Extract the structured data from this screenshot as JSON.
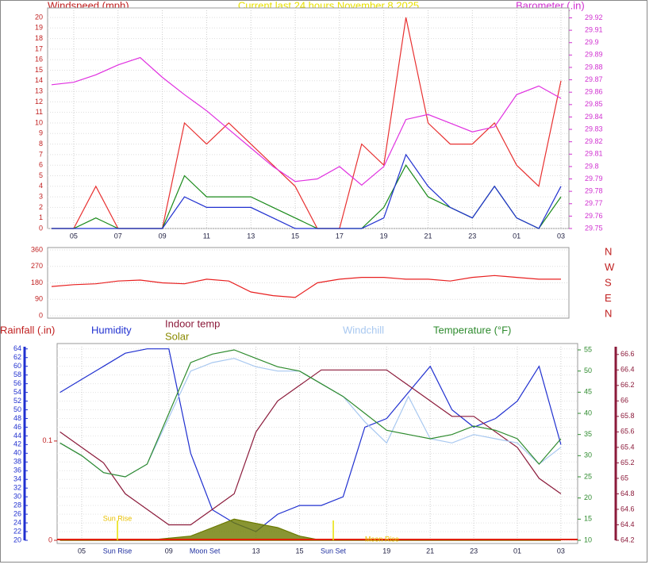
{
  "chart_data": [
    {
      "type": "line",
      "title": "Current last 24 hours November 8 2025",
      "y_label": "Windspeed (mph)",
      "y2_label": "Barometer (.in)",
      "x": [
        4,
        5,
        6,
        7,
        8,
        9,
        10,
        11,
        12,
        13,
        14,
        15,
        16,
        17,
        18,
        19,
        20,
        21,
        22,
        23,
        24,
        25,
        26,
        27
      ],
      "xlim": [
        3.82,
        27.36
      ],
      "xticks": [
        {
          "value": 5,
          "label": "05"
        },
        {
          "value": 7,
          "label": "07"
        },
        {
          "value": 9,
          "label": "09"
        },
        11,
        13,
        15,
        17,
        19,
        21,
        23,
        {
          "value": 25,
          "label": "01"
        },
        {
          "value": 27,
          "label": "03"
        }
      ],
      "ylim": [
        0,
        20.9
      ],
      "yticks": [
        0,
        1,
        2,
        3,
        4,
        5,
        6,
        7,
        8,
        9,
        10,
        11,
        12,
        13,
        14,
        15,
        16,
        17,
        18,
        19,
        20
      ],
      "y2lim": [
        29.75,
        29.928
      ],
      "y2ticks": [
        29.75,
        29.76,
        29.77,
        29.78,
        29.79,
        29.8,
        29.81,
        29.82,
        29.83,
        29.84,
        29.85,
        29.86,
        29.87,
        29.88,
        29.89,
        29.9,
        29.91,
        29.92
      ],
      "grid": true,
      "series": [
        {
          "color": "#e83030",
          "values": [
            0,
            0,
            4,
            0,
            0,
            0,
            10,
            8,
            10,
            8,
            6,
            4,
            0,
            0,
            8,
            6,
            20,
            10,
            8,
            8,
            10,
            6,
            4,
            14
          ]
        },
        {
          "color": "#1a8a1a",
          "values": [
            0,
            0,
            1,
            0,
            0,
            0,
            5,
            3,
            3,
            3,
            2,
            1,
            0,
            0,
            0,
            2,
            6,
            3,
            2,
            1,
            4,
            1,
            0,
            3
          ]
        },
        {
          "color": "#2030d0",
          "values": [
            0,
            0,
            0,
            0,
            0,
            0,
            3,
            2,
            2,
            2,
            1,
            0,
            0,
            0,
            0,
            1,
            7,
            4,
            2,
            1,
            4,
            1,
            0,
            4
          ]
        },
        {
          "color": "#e030e0",
          "axis": "y2",
          "values": [
            29.866,
            29.868,
            29.874,
            29.882,
            29.888,
            29.872,
            29.858,
            29.845,
            29.83,
            29.815,
            29.8,
            29.788,
            29.79,
            29.8,
            29.785,
            29.8,
            29.838,
            29.842,
            29.835,
            29.828,
            29.832,
            29.858,
            29.865,
            29.855
          ]
        }
      ]
    },
    {
      "type": "line",
      "x": [
        4,
        5,
        6,
        7,
        8,
        9,
        10,
        11,
        12,
        13,
        14,
        15,
        16,
        17,
        18,
        19,
        20,
        21,
        22,
        23,
        24,
        25,
        26,
        27
      ],
      "xlim": [
        3.82,
        27.36
      ],
      "ylim": [
        0,
        360
      ],
      "yticks": [
        0,
        90,
        180,
        270,
        360
      ],
      "grid": true,
      "direction_labels": [
        "N",
        "W",
        "S",
        "E",
        "N"
      ],
      "series": [
        {
          "color": "#e82020",
          "values": [
            160,
            170,
            175,
            190,
            195,
            180,
            175,
            200,
            190,
            130,
            110,
            100,
            180,
            200,
            210,
            210,
            200,
            200,
            190,
            210,
            220,
            210,
            200,
            200
          ]
        }
      ]
    },
    {
      "type": "line",
      "x": [
        4,
        5,
        6,
        7,
        8,
        9,
        10,
        11,
        12,
        13,
        14,
        15,
        16,
        17,
        18,
        19,
        20,
        21,
        22,
        23,
        24,
        25,
        26,
        27
      ],
      "xlim": [
        3.87,
        27.77
      ],
      "xticks": [
        {
          "value": 5,
          "label": "05"
        },
        {
          "value": 9,
          "label": "09"
        },
        13,
        15,
        19,
        21,
        23,
        {
          "value": 25,
          "label": "01"
        },
        {
          "value": 27,
          "label": "03"
        }
      ],
      "grid": true,
      "axes": {
        "rain": {
          "lim": [
            0,
            0.195
          ],
          "ticks": [
            0,
            0.1
          ]
        },
        "humidity": {
          "lim": [
            20,
            64.5
          ],
          "ticks": [
            20,
            22,
            24,
            26,
            28,
            30,
            32,
            34,
            36,
            38,
            40,
            42,
            44,
            46,
            48,
            50,
            52,
            54,
            56,
            58,
            60,
            62,
            64
          ]
        },
        "temp": {
          "lim": [
            10,
            55.75
          ],
          "ticks": [
            10,
            15,
            20,
            25,
            30,
            35,
            40,
            45,
            50,
            55
          ]
        },
        "indoor": {
          "lim": [
            64.2,
            66.7
          ],
          "ticks": [
            64.2,
            64.4,
            64.6,
            64.8,
            65,
            65.2,
            65.4,
            65.6,
            65.8,
            66,
            66.2,
            66.4,
            66.6
          ]
        }
      },
      "events": [
        {
          "label": "Sun Rise",
          "x": 6.64
        },
        {
          "label": "Moon Set",
          "x": 10.65
        },
        {
          "label": "Sun Set",
          "x": 16.55
        },
        {
          "label": "Moon Rise",
          "x": 18.0
        }
      ],
      "series": [
        {
          "name": "Rainfall (.in)",
          "color": "#d02020",
          "axis": "rain",
          "values": [
            0,
            0,
            0,
            0,
            0,
            0,
            0,
            0,
            0,
            0,
            0,
            0,
            0,
            0,
            0,
            0,
            0,
            0,
            0,
            0,
            0,
            0,
            0,
            0
          ]
        },
        {
          "name": "Humidity",
          "color": "#2030d0",
          "axis": "humidity",
          "values": [
            54,
            57,
            60,
            63,
            64,
            64,
            40,
            27,
            24,
            22,
            26,
            28,
            28,
            30,
            46,
            48,
            54,
            60,
            50,
            46,
            48,
            52,
            60,
            42
          ]
        },
        {
          "name": "Indoor temp",
          "color": "#8b1a3a",
          "axis": "indoor",
          "values": [
            65.6,
            65.4,
            65.2,
            64.8,
            64.6,
            64.4,
            64.4,
            64.6,
            64.8,
            65.6,
            66,
            66.2,
            66.4,
            66.4,
            66.4,
            66.4,
            66.2,
            66,
            65.8,
            65.8,
            65.6,
            65.4,
            65,
            64.8
          ]
        },
        {
          "name": "Solar",
          "color": "#6b7a00",
          "axis": "temp",
          "area": true,
          "values": [
            10,
            10,
            10,
            10,
            10,
            10.5,
            11,
            13,
            15,
            14,
            13,
            11,
            10,
            10,
            10,
            10,
            10,
            10,
            10,
            10,
            10,
            10,
            10,
            10
          ]
        },
        {
          "name": "Windchill",
          "color": "#a8c8f0",
          "axis": "temp",
          "values": [
            33,
            30,
            26,
            25,
            28,
            39,
            50,
            52,
            53,
            51,
            50,
            50,
            47,
            44,
            38,
            33,
            44,
            34,
            33,
            35,
            34,
            33,
            28,
            32
          ]
        },
        {
          "name": "Temperature (°F)",
          "color": "#2e8b2e",
          "axis": "temp",
          "values": [
            33,
            30,
            26,
            25,
            28,
            40,
            52,
            54,
            55,
            53,
            51,
            50,
            47,
            44,
            40,
            36,
            35,
            34,
            35,
            37,
            36,
            34,
            28,
            34
          ]
        }
      ]
    }
  ]
}
